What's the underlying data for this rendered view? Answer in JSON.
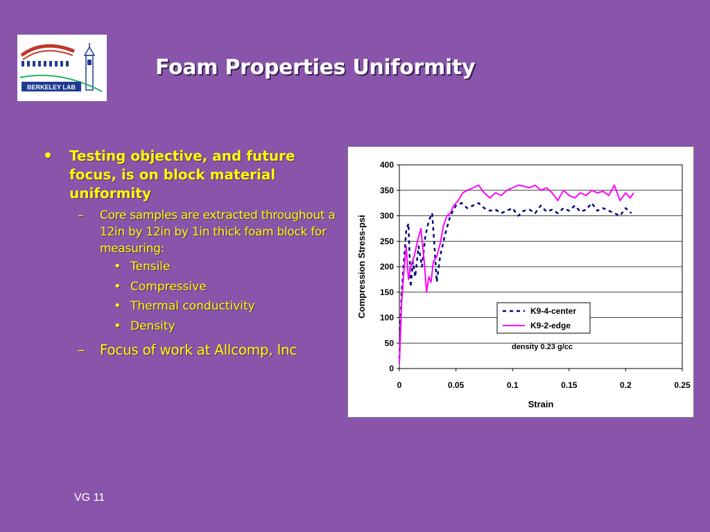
{
  "slide": {
    "title": "Foam Properties Uniformity",
    "logo_text": "BERKELEY LAB",
    "footer": "VG 11",
    "colors": {
      "background": "#8855AA",
      "bullet_text": "#FFFF00",
      "title": "#FFFFFF"
    }
  },
  "bullets": {
    "main": "Testing objective, and future focus, is on block material uniformity",
    "sub1": "Core samples are extracted throughout a 12in by 12in by 1in thick foam block for measuring:",
    "items": [
      "Tensile",
      "Compressive",
      "Thermal conductivity",
      "Density"
    ],
    "sub2": "Focus of work at Allcomp, Inc",
    "bullet_mark": "•",
    "dash_mark": "–"
  },
  "chart_data": {
    "type": "line",
    "title": "",
    "xlabel": "Strain",
    "ylabel": "Compression Stress-psi",
    "xlim": [
      0,
      0.25
    ],
    "ylim": [
      0,
      400
    ],
    "x_ticks": [
      "0",
      "0.05",
      "0.1",
      "0.15",
      "0.2",
      "0.25"
    ],
    "y_ticks": [
      "0",
      "50",
      "100",
      "150",
      "200",
      "250",
      "300",
      "350",
      "400"
    ],
    "grid": "horizontal",
    "legend": "center-right",
    "annotation": "density 0.23 g/cc",
    "series": [
      {
        "name": "K9-4-center",
        "style": "dashed",
        "color": "#000080",
        "x": [
          0,
          0.002,
          0.004,
          0.006,
          0.008,
          0.01,
          0.012,
          0.014,
          0.017,
          0.02,
          0.023,
          0.026,
          0.029,
          0.031,
          0.033,
          0.036,
          0.04,
          0.045,
          0.05,
          0.055,
          0.06,
          0.065,
          0.07,
          0.075,
          0.08,
          0.085,
          0.09,
          0.095,
          0.1,
          0.105,
          0.11,
          0.115,
          0.12,
          0.125,
          0.13,
          0.135,
          0.14,
          0.145,
          0.15,
          0.155,
          0.16,
          0.165,
          0.17,
          0.175,
          0.18,
          0.185,
          0.19,
          0.195,
          0.2,
          0.205
        ],
        "y": [
          20,
          150,
          210,
          270,
          285,
          160,
          210,
          180,
          240,
          200,
          260,
          290,
          305,
          240,
          170,
          220,
          260,
          300,
          320,
          325,
          315,
          320,
          325,
          315,
          310,
          312,
          305,
          310,
          315,
          300,
          310,
          312,
          305,
          320,
          308,
          312,
          305,
          315,
          310,
          320,
          308,
          312,
          325,
          310,
          315,
          310,
          305,
          300,
          315,
          305
        ]
      },
      {
        "name": "K9-2-edge",
        "style": "solid",
        "color": "#FF00FF",
        "x": [
          0,
          0.002,
          0.004,
          0.006,
          0.008,
          0.01,
          0.013,
          0.016,
          0.019,
          0.022,
          0.024,
          0.026,
          0.028,
          0.03,
          0.033,
          0.036,
          0.039,
          0.042,
          0.045,
          0.048,
          0.052,
          0.056,
          0.06,
          0.065,
          0.07,
          0.075,
          0.08,
          0.085,
          0.09,
          0.095,
          0.1,
          0.105,
          0.11,
          0.115,
          0.12,
          0.125,
          0.13,
          0.135,
          0.14,
          0.145,
          0.15,
          0.155,
          0.16,
          0.165,
          0.17,
          0.175,
          0.18,
          0.185,
          0.19,
          0.195,
          0.2,
          0.204,
          0.207
        ],
        "y": [
          10,
          130,
          190,
          240,
          175,
          200,
          220,
          250,
          275,
          210,
          150,
          180,
          170,
          210,
          220,
          245,
          280,
          300,
          305,
          320,
          330,
          345,
          350,
          355,
          360,
          345,
          335,
          345,
          340,
          350,
          355,
          360,
          358,
          355,
          360,
          350,
          355,
          345,
          330,
          350,
          340,
          335,
          345,
          340,
          350,
          345,
          348,
          340,
          360,
          330,
          345,
          335,
          345
        ]
      }
    ]
  }
}
